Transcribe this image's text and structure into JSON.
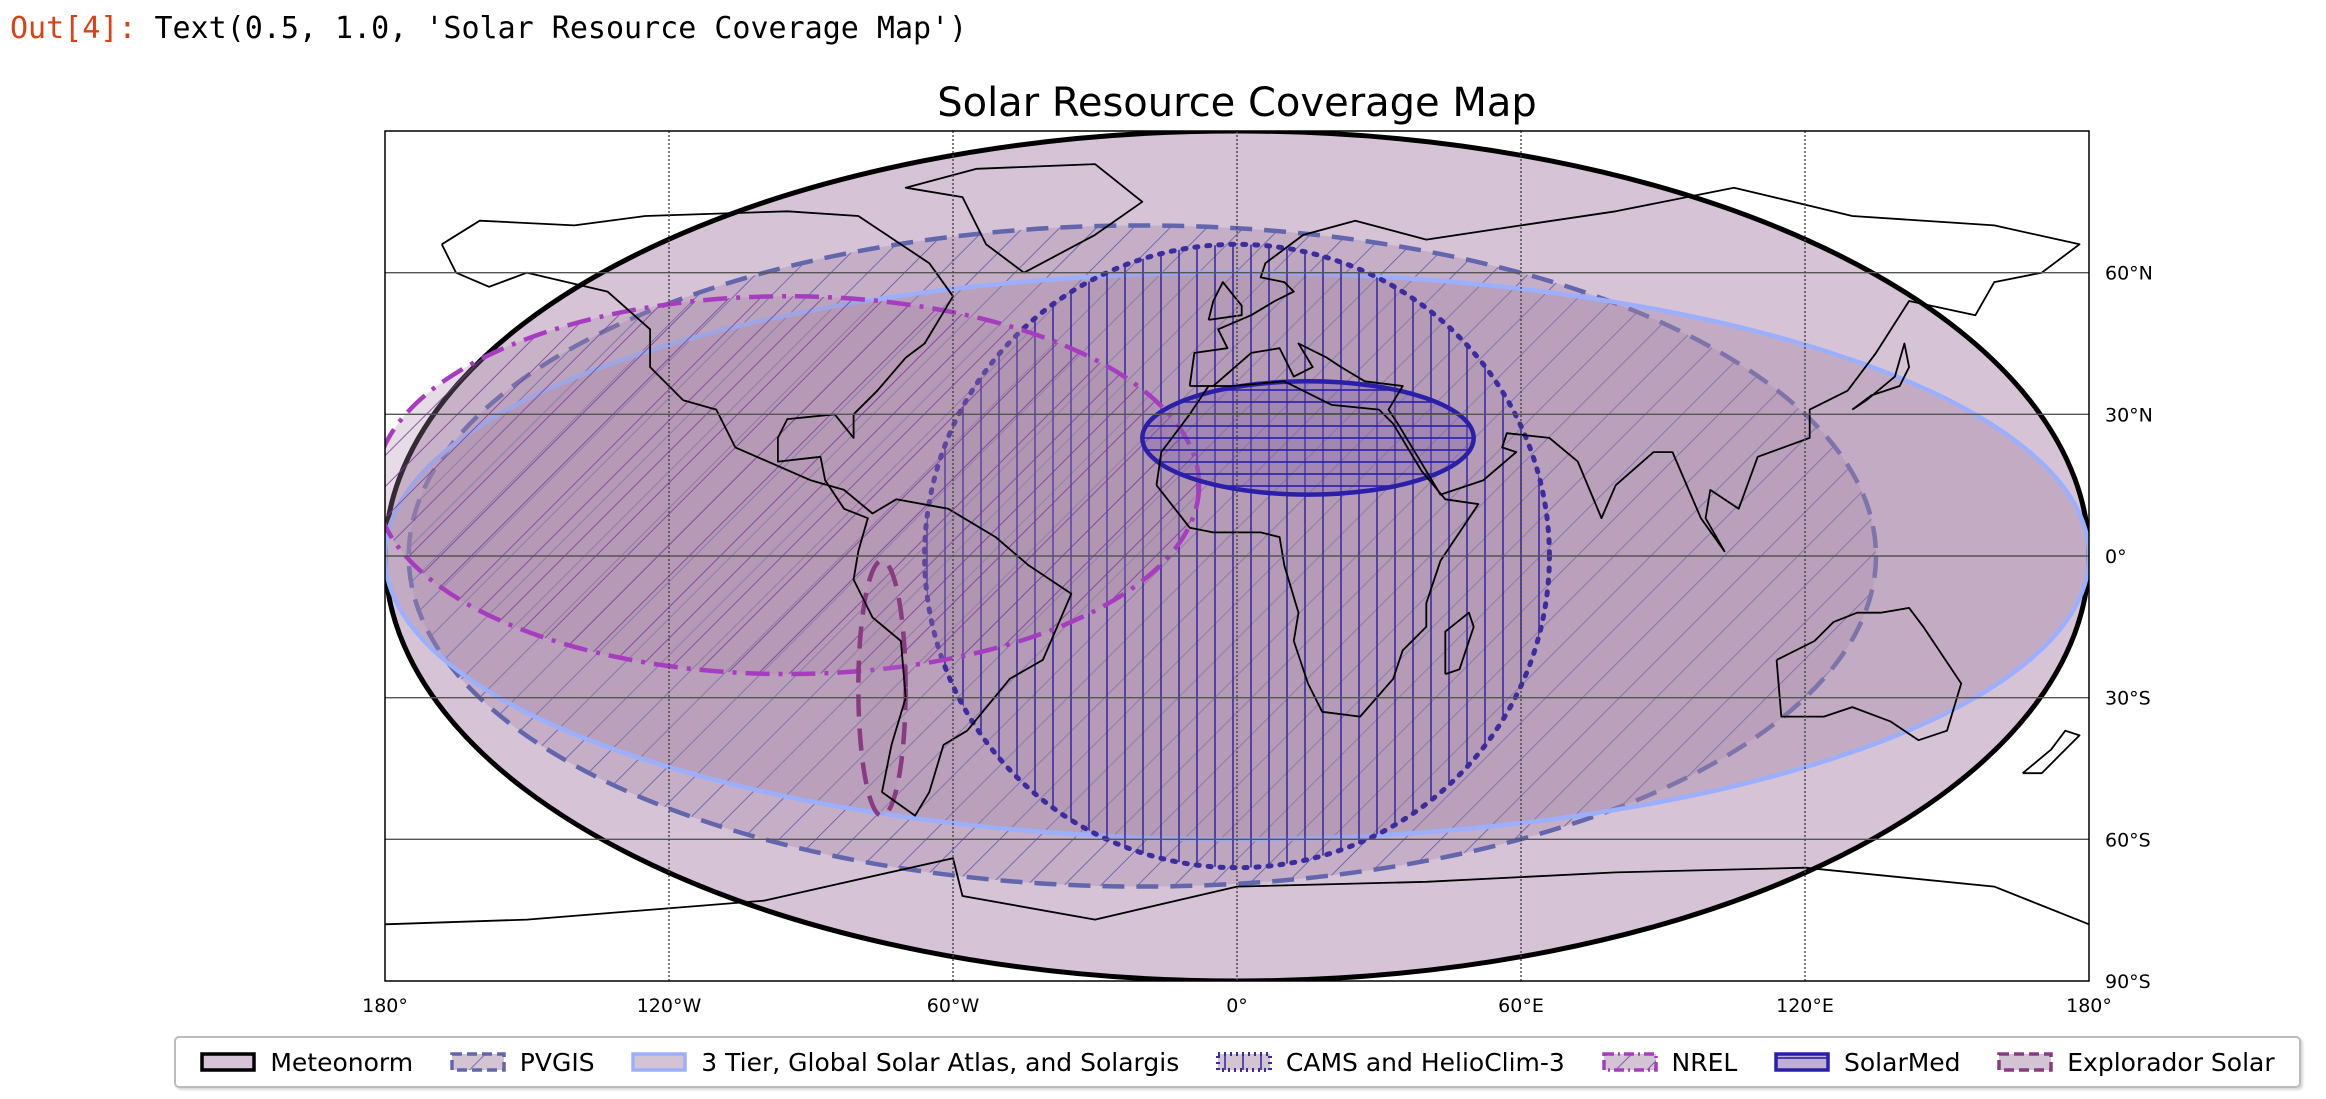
{
  "output": {
    "prompt": "Out[4]:",
    "text": "Text(0.5, 1.0, 'Solar Resource Coverage Map')"
  },
  "chart_data": {
    "type": "map",
    "title": "Solar Resource Coverage Map",
    "projection": "equirectangular",
    "xlim": [
      -180,
      180
    ],
    "ylim": [
      -90,
      90
    ],
    "grid": true,
    "x_ticks": [
      {
        "value": -180,
        "label": "180°"
      },
      {
        "value": -120,
        "label": "120°W"
      },
      {
        "value": -60,
        "label": "60°W"
      },
      {
        "value": 0,
        "label": "0°"
      },
      {
        "value": 60,
        "label": "60°E"
      },
      {
        "value": 120,
        "label": "120°E"
      },
      {
        "value": 180,
        "label": "180°"
      }
    ],
    "y_ticks": [
      {
        "value": 60,
        "label": "60°N"
      },
      {
        "value": 30,
        "label": "30°N"
      },
      {
        "value": 0,
        "label": "0°"
      },
      {
        "value": -30,
        "label": "30°S"
      },
      {
        "value": -60,
        "label": "60°S"
      },
      {
        "value": -90,
        "label": "90°S"
      }
    ],
    "legend_position": "bottom",
    "series": [
      {
        "name": "Meteonorm",
        "center": [
          0,
          0
        ],
        "radius": [
          180,
          90
        ],
        "fill": "#d6c3d6",
        "fill_opacity": 1,
        "edge": "#000000",
        "linestyle": "solid",
        "hatch": "none"
      },
      {
        "name": "PVGIS",
        "center": [
          -20,
          0
        ],
        "radius": [
          155,
          70
        ],
        "fill": "#a88aa8",
        "fill_opacity": 0.35,
        "edge": "#6166ad",
        "linestyle": "dashed",
        "hatch": "diagonal"
      },
      {
        "name": "3 Tier, Global Solar Atlas, and Solargis",
        "center": [
          0,
          0
        ],
        "radius": [
          180,
          60
        ],
        "fill": "#a88aa8",
        "fill_opacity": 0.4,
        "edge": "#9ab0ff",
        "linestyle": "solid",
        "hatch": "none"
      },
      {
        "name": "CAMS and HelioClim-3",
        "center": [
          0,
          0
        ],
        "radius": [
          66,
          66
        ],
        "fill": "#a88aa8",
        "fill_opacity": 0.25,
        "edge": "#3b2ca0",
        "linestyle": "dotted",
        "hatch": "vertical"
      },
      {
        "name": "NREL",
        "center": [
          -95,
          15
        ],
        "radius": [
          87,
          40
        ],
        "fill": "#a88aa8",
        "fill_opacity": 0.3,
        "edge": "#a83cc0",
        "linestyle": "dashdot",
        "hatch": "diagonal"
      },
      {
        "name": "SolarMed",
        "center": [
          15,
          25
        ],
        "radius": [
          35,
          12
        ],
        "fill": "#8060b0",
        "fill_opacity": 0.35,
        "edge": "#2a1fa8",
        "linestyle": "solid",
        "hatch": "horizontal"
      },
      {
        "name": "Explorador Solar",
        "center": [
          -75,
          -28
        ],
        "radius": [
          5,
          27
        ],
        "fill": "#a88aa8",
        "fill_opacity": 0.2,
        "edge": "#8a3a80",
        "linestyle": "dashed",
        "hatch": "none"
      }
    ]
  }
}
